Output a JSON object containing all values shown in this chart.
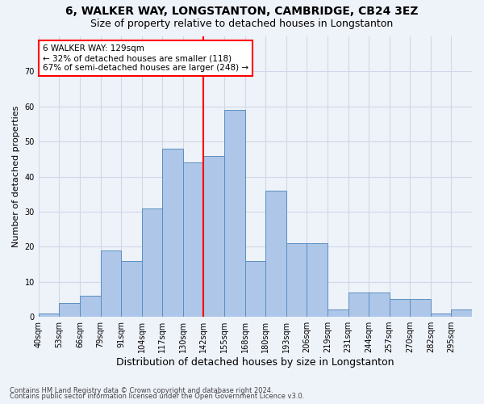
{
  "title_line1": "6, WALKER WAY, LONGSTANTON, CAMBRIDGE, CB24 3EZ",
  "title_line2": "Size of property relative to detached houses in Longstanton",
  "xlabel": "Distribution of detached houses by size in Longstanton",
  "ylabel": "Number of detached properties",
  "footnote1": "Contains HM Land Registry data © Crown copyright and database right 2024.",
  "footnote2": "Contains public sector information licensed under the Open Government Licence v3.0.",
  "bin_labels": [
    "40sqm",
    "53sqm",
    "66sqm",
    "79sqm",
    "91sqm",
    "104sqm",
    "117sqm",
    "130sqm",
    "142sqm",
    "155sqm",
    "168sqm",
    "180sqm",
    "193sqm",
    "206sqm",
    "219sqm",
    "231sqm",
    "244sqm",
    "257sqm",
    "270sqm",
    "282sqm",
    "295sqm"
  ],
  "bar_values": [
    1,
    4,
    6,
    19,
    16,
    31,
    48,
    44,
    46,
    59,
    16,
    36,
    21,
    21,
    2,
    7,
    7,
    5,
    5,
    1,
    2
  ],
  "bar_color": "#aec6e8",
  "bar_edge_color": "#5a8fc0",
  "grid_color": "#d0d8e8",
  "vline_color": "red",
  "annotation_text": "6 WALKER WAY: 129sqm\n← 32% of detached houses are smaller (118)\n67% of semi-detached houses are larger (248) →",
  "annotation_box_color": "white",
  "annotation_box_edge": "red",
  "ylim": [
    0,
    80
  ],
  "yticks": [
    0,
    10,
    20,
    30,
    40,
    50,
    60,
    70,
    80
  ],
  "background_color": "#eef2f9"
}
